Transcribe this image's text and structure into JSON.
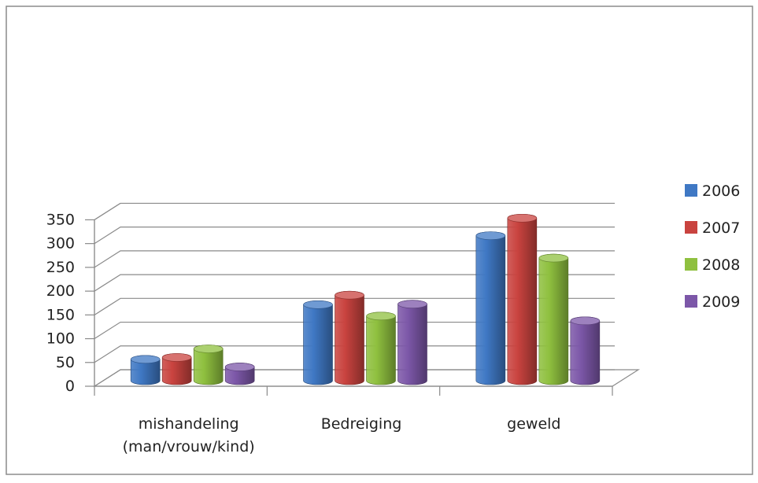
{
  "chart_data": {
    "type": "bar",
    "style": "3d-cylinder",
    "categories": [
      "mishandeling\n(man/vrouw/kind)",
      "Bedreiging",
      "geweld"
    ],
    "series": [
      {
        "name": "2006",
        "values": [
          45,
          160,
          305
        ],
        "color": "#3f78c4"
      },
      {
        "name": "2007",
        "values": [
          49,
          180,
          342
        ],
        "color": "#c9433f"
      },
      {
        "name": "2008",
        "values": [
          67,
          136,
          258
        ],
        "color": "#8fc03f"
      },
      {
        "name": "2009",
        "values": [
          29,
          161,
          126
        ],
        "color": "#7c57a8"
      }
    ],
    "title": "",
    "xlabel": "",
    "ylabel": "",
    "ylim": [
      0,
      350
    ],
    "yticks": [
      "0",
      "50",
      "100",
      "150",
      "200",
      "250",
      "300",
      "350"
    ],
    "grid": true,
    "legend_position": "right"
  }
}
